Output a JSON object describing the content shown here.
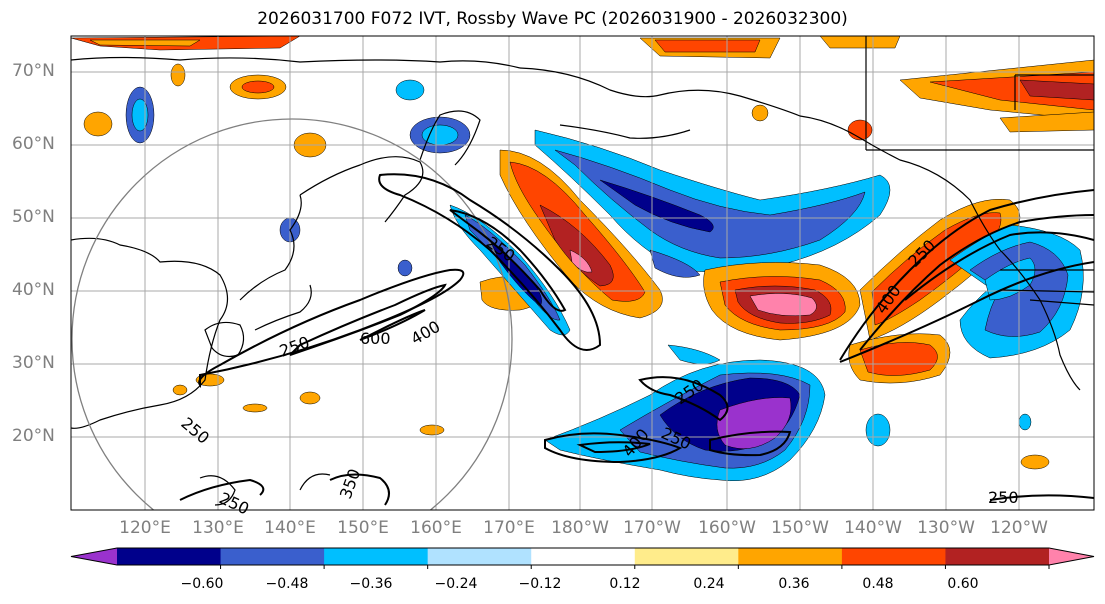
{
  "title": "2026031700 F072 IVT, Rossby Wave PC (2026031900 - 2026032300)",
  "latitude_labels": [
    "70°N",
    "60°N",
    "50°N",
    "40°N",
    "30°N",
    "20°N"
  ],
  "longitude_labels": [
    "120°E",
    "130°E",
    "140°E",
    "150°E",
    "160°E",
    "170°E",
    "180°W",
    "170°W",
    "160°W",
    "150°W",
    "140°W",
    "130°W",
    "120°W"
  ],
  "contour_labels": [
    "250",
    "600",
    "400",
    "250",
    "250",
    "400",
    "250",
    "250",
    "250",
    "400",
    "250",
    "250",
    "350"
  ],
  "colorbar": {
    "ticks": [
      "−0.60",
      "−0.48",
      "−0.36",
      "−0.24",
      "−0.12",
      "0.12",
      "0.24",
      "0.36",
      "0.48",
      "0.60"
    ],
    "colors": [
      "#9a32cd",
      "#00008b",
      "#3a5fcd",
      "#00bfff",
      "#b0e2ff",
      "#ffffff",
      "#ffec8b",
      "#ffa500",
      "#ff4500",
      "#b22222",
      "#ff82ab"
    ]
  }
}
